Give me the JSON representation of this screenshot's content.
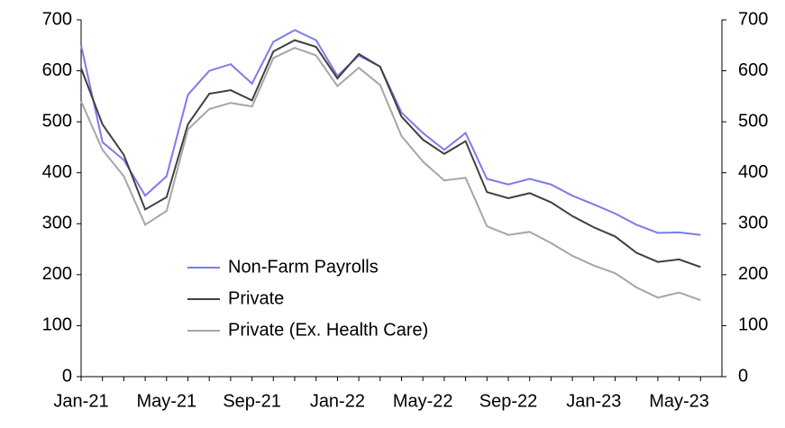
{
  "chart_data": {
    "type": "line",
    "categories": [
      "Jan-21",
      null,
      null,
      null,
      "May-21",
      null,
      null,
      null,
      "Sep-21",
      null,
      null,
      null,
      "Jan-22",
      null,
      null,
      null,
      "May-22",
      null,
      null,
      null,
      "Sep-22",
      null,
      null,
      null,
      "Jan-23",
      null,
      null,
      null,
      "May-23",
      null
    ],
    "series": [
      {
        "name": "Non-Farm Payrolls",
        "color": "#7b7bef",
        "values": [
          650,
          460,
          425,
          355,
          393,
          553,
          600,
          613,
          575,
          657,
          680,
          660,
          590,
          630,
          608,
          518,
          478,
          445,
          478,
          388,
          377,
          388,
          377,
          355,
          338,
          320,
          298,
          282,
          283,
          278
        ]
      },
      {
        "name": "Private",
        "color": "#404040",
        "values": [
          605,
          495,
          435,
          328,
          352,
          495,
          555,
          562,
          542,
          638,
          660,
          647,
          585,
          633,
          608,
          510,
          465,
          437,
          462,
          362,
          350,
          360,
          342,
          315,
          293,
          275,
          243,
          225,
          230,
          215
        ]
      },
      {
        "name": "Private (Ex. Health Care)",
        "color": "#a6a6a6",
        "values": [
          540,
          445,
          393,
          298,
          325,
          485,
          525,
          537,
          530,
          625,
          645,
          630,
          570,
          606,
          572,
          472,
          422,
          385,
          390,
          295,
          278,
          284,
          262,
          237,
          218,
          203,
          175,
          155,
          165,
          150
        ]
      }
    ],
    "ylim": [
      0,
      700
    ],
    "yticks": [
      0,
      100,
      200,
      300,
      400,
      500,
      600,
      700
    ],
    "y2lim": [
      0,
      700
    ],
    "y2ticks": [
      0,
      100,
      200,
      300,
      400,
      500,
      600,
      700
    ],
    "legend": "center-left"
  }
}
